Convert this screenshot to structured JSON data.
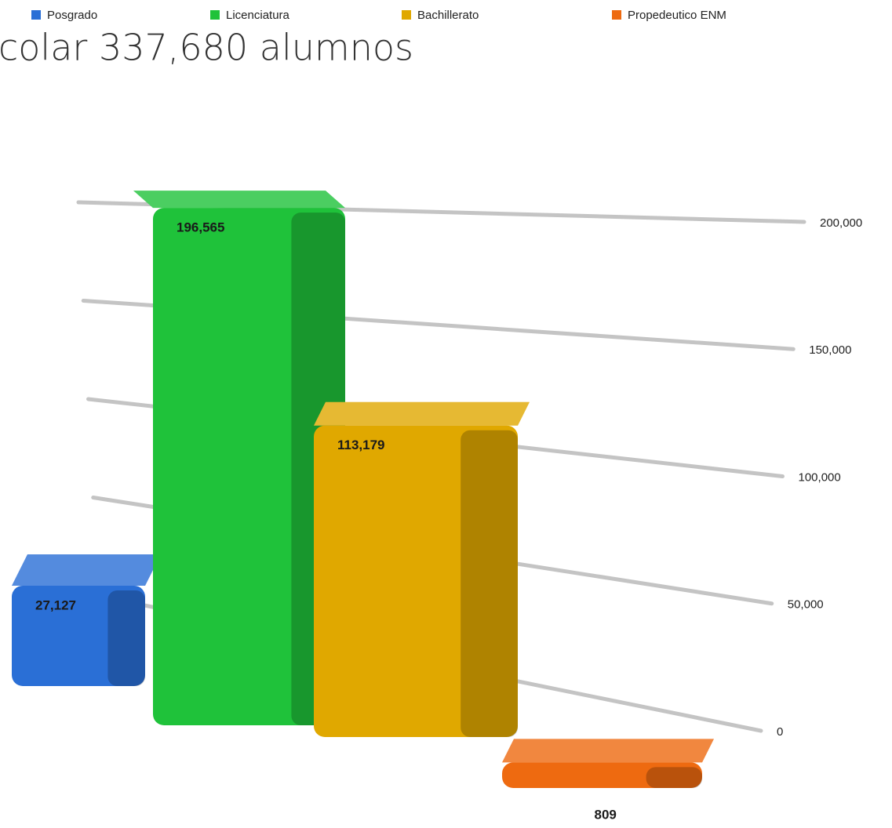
{
  "chart_data": {
    "type": "bar3d",
    "title": "colar 337,680 alumnos",
    "series": [
      {
        "name": "Posgrado",
        "color": "#2a6fd6",
        "values": [
          27127
        ],
        "value_labels": [
          "27,127"
        ]
      },
      {
        "name": "Licenciatura",
        "color": "#1fc23a",
        "values": [
          196565
        ],
        "value_labels": [
          "196,565"
        ]
      },
      {
        "name": "Bachillerato",
        "color": "#e0a800",
        "values": [
          113179
        ],
        "value_labels": [
          "113,179"
        ]
      },
      {
        "name": "Propedeutico ENM",
        "color": "#ee6a10",
        "values": [
          809
        ],
        "value_labels": [
          "809"
        ]
      }
    ],
    "ylim": [
      0,
      200000
    ],
    "yticks": [
      0,
      {
        "value": 50000,
        "label": "50,000"
      },
      {
        "value": 100000,
        "label": "100,000"
      },
      {
        "value": 150000,
        "label": "150,000"
      },
      {
        "value": 200000,
        "label": "200,000"
      }
    ],
    "grid": true,
    "legend": "top"
  }
}
